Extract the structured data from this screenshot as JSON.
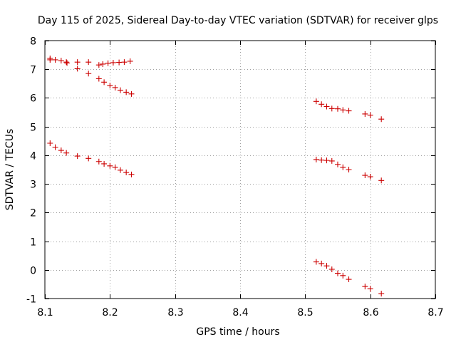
{
  "chart_data": {
    "type": "scatter",
    "title": "Day 115 of 2025, Sidereal Day-to-day VTEC variation (SDTVAR) for receiver glps",
    "xlabel": "GPS time / hours",
    "ylabel": "SDTVAR / TECUs",
    "xlim": [
      8.1,
      8.7
    ],
    "ylim": [
      -1,
      8
    ],
    "xticks": [
      8.1,
      8.2,
      8.3,
      8.4,
      8.5,
      8.6,
      8.7
    ],
    "xtick_labels": [
      "8.1",
      "8.2",
      "8.3",
      "8.4",
      "8.5",
      "8.6",
      "8.7"
    ],
    "yticks": [
      -1,
      0,
      1,
      2,
      3,
      4,
      5,
      6,
      7,
      8
    ],
    "ytick_labels": [
      "-1",
      "0",
      "1",
      "2",
      "3",
      "4",
      "5",
      "6",
      "7",
      "8"
    ],
    "grid": true,
    "marker": "+",
    "marker_color": "#cc0000",
    "series": [
      {
        "name": "upper-track",
        "points": [
          [
            8.108,
            7.33
          ],
          [
            8.108,
            7.38
          ],
          [
            8.116,
            7.33
          ],
          [
            8.125,
            7.3
          ],
          [
            8.133,
            7.25
          ],
          [
            8.134,
            7.22
          ],
          [
            8.15,
            7.25
          ],
          [
            8.167,
            7.25
          ],
          [
            8.183,
            7.15
          ],
          [
            8.189,
            7.18
          ],
          [
            8.197,
            7.21
          ],
          [
            8.205,
            7.23
          ],
          [
            8.214,
            7.24
          ],
          [
            8.222,
            7.25
          ],
          [
            8.231,
            7.28
          ]
        ]
      },
      {
        "name": "upper-descending",
        "points": [
          [
            8.15,
            7.02
          ],
          [
            8.167,
            6.85
          ],
          [
            8.183,
            6.67
          ],
          [
            8.191,
            6.55
          ],
          [
            8.2,
            6.43
          ],
          [
            8.208,
            6.36
          ],
          [
            8.216,
            6.27
          ],
          [
            8.225,
            6.2
          ],
          [
            8.233,
            6.14
          ]
        ]
      },
      {
        "name": "middle-track",
        "points": [
          [
            8.108,
            4.42
          ],
          [
            8.116,
            4.28
          ],
          [
            8.125,
            4.17
          ],
          [
            8.133,
            4.08
          ],
          [
            8.15,
            3.97
          ],
          [
            8.167,
            3.89
          ],
          [
            8.183,
            3.78
          ],
          [
            8.191,
            3.7
          ],
          [
            8.2,
            3.63
          ],
          [
            8.208,
            3.58
          ],
          [
            8.216,
            3.48
          ],
          [
            8.225,
            3.4
          ],
          [
            8.233,
            3.33
          ]
        ]
      },
      {
        "name": "right-upper",
        "points": [
          [
            8.517,
            5.88
          ],
          [
            8.525,
            5.78
          ],
          [
            8.533,
            5.7
          ],
          [
            8.541,
            5.63
          ],
          [
            8.55,
            5.62
          ],
          [
            8.558,
            5.58
          ],
          [
            8.567,
            5.55
          ],
          [
            8.592,
            5.44
          ],
          [
            8.6,
            5.4
          ],
          [
            8.617,
            5.26
          ]
        ]
      },
      {
        "name": "right-middle",
        "points": [
          [
            8.517,
            3.85
          ],
          [
            8.525,
            3.83
          ],
          [
            8.533,
            3.82
          ],
          [
            8.541,
            3.8
          ],
          [
            8.55,
            3.68
          ],
          [
            8.558,
            3.58
          ],
          [
            8.567,
            3.5
          ],
          [
            8.592,
            3.3
          ],
          [
            8.6,
            3.25
          ],
          [
            8.617,
            3.12
          ]
        ]
      },
      {
        "name": "right-lower",
        "points": [
          [
            8.517,
            0.28
          ],
          [
            8.525,
            0.22
          ],
          [
            8.533,
            0.14
          ],
          [
            8.541,
            0.02
          ],
          [
            8.55,
            -0.12
          ],
          [
            8.558,
            -0.2
          ],
          [
            8.567,
            -0.33
          ],
          [
            8.592,
            -0.58
          ],
          [
            8.6,
            -0.66
          ],
          [
            8.617,
            -0.83
          ]
        ]
      }
    ]
  }
}
